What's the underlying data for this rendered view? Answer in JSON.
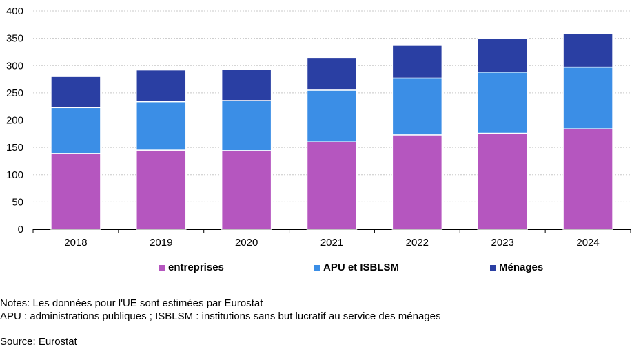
{
  "chart_data": {
    "type": "bar",
    "stacked": true,
    "categories": [
      "2018",
      "2019",
      "2020",
      "2021",
      "2022",
      "2023",
      "2024"
    ],
    "series": [
      {
        "name": "entreprises",
        "color": "#b556bf",
        "values": [
          139,
          145,
          144,
          160,
          173,
          176,
          184
        ]
      },
      {
        "name": "APU et ISBLSM",
        "color": "#3b8ee6",
        "values": [
          84,
          89,
          92,
          95,
          104,
          112,
          113
        ]
      },
      {
        "name": "Ménages",
        "color": "#2a3fa3",
        "values": [
          57,
          58,
          57,
          60,
          60,
          62,
          62
        ]
      }
    ],
    "ylim": [
      0,
      400
    ],
    "yticks": [
      0,
      50,
      100,
      150,
      200,
      250,
      300,
      350,
      400
    ],
    "grid": true,
    "legend": "bottom"
  },
  "notes": [
    "Notes: Les données pour l'UE sont estimées par Eurostat",
    "APU : administrations publiques ; ISBLSM : institutions sans but lucratif au service des ménages"
  ],
  "source": "Source: Eurostat"
}
